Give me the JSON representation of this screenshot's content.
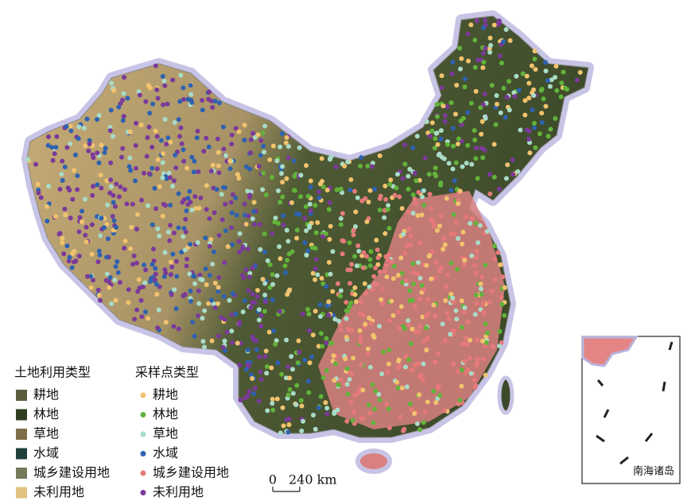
{
  "land_use_legend": {
    "title": "土地利用类型",
    "items": [
      {
        "label": "耕地",
        "color": "#5b5b3e"
      },
      {
        "label": "林地",
        "color": "#2f3d22"
      },
      {
        "label": "草地",
        "color": "#7d7048"
      },
      {
        "label": "水域",
        "color": "#1f3f3a"
      },
      {
        "label": "城乡建设用地",
        "color": "#76795a"
      },
      {
        "label": "未利用地",
        "color": "#e2c27f"
      }
    ]
  },
  "sample_legend": {
    "title": "采样点类型",
    "items": [
      {
        "label": "耕地",
        "color": "#f2c36e"
      },
      {
        "label": "林地",
        "color": "#62b33a"
      },
      {
        "label": "草地",
        "color": "#a9dcc8"
      },
      {
        "label": "水域",
        "color": "#2f62b0"
      },
      {
        "label": "城乡建设用地",
        "color": "#e57a7a"
      },
      {
        "label": "未利用地",
        "color": "#7b3a9a"
      }
    ]
  },
  "scale_bar": {
    "zero": "0",
    "label": "240 km"
  },
  "inset": {
    "label": "南海诸岛"
  }
}
